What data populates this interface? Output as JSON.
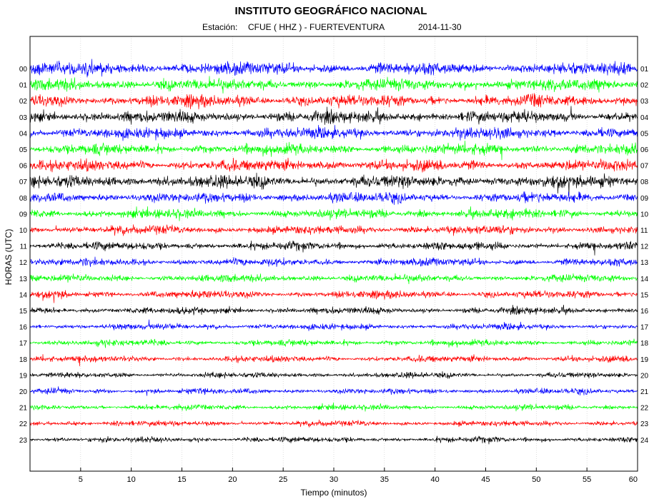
{
  "chart_data": {
    "type": "line",
    "title": "INSTITUTO GEOGRÁFICO NACIONAL",
    "station_label": "Estación:",
    "station": "CFUE ( HHZ ) - FUERTEVENTURA",
    "date": "2014-11-30",
    "xlabel": "Tiempo (minutos)",
    "ylabel": "HORAS (UTC)",
    "xlim": [
      0,
      60
    ],
    "xticks": [
      "5",
      "10",
      "15",
      "20",
      "25",
      "30",
      "35",
      "40",
      "45",
      "50",
      "55",
      "60"
    ],
    "grid": true,
    "left_hour_labels": [
      "00",
      "01",
      "02",
      "03",
      "04",
      "05",
      "06",
      "07",
      "08",
      "09",
      "10",
      "11",
      "12",
      "13",
      "14",
      "15",
      "16",
      "17",
      "18",
      "19",
      "20",
      "21",
      "22",
      "23"
    ],
    "right_hour_labels": [
      "01",
      "02",
      "03",
      "04",
      "05",
      "06",
      "07",
      "08",
      "09",
      "10",
      "11",
      "12",
      "13",
      "14",
      "15",
      "16",
      "17",
      "18",
      "19",
      "20",
      "21",
      "22",
      "23",
      "24"
    ],
    "trace_colors": [
      "#0000ff",
      "#00ff00",
      "#ff0000",
      "#000000"
    ],
    "trace_amplitude_relative": [
      1.0,
      0.95,
      0.95,
      0.95,
      0.9,
      0.85,
      0.9,
      1.0,
      0.8,
      0.75,
      0.7,
      0.65,
      0.6,
      0.6,
      0.6,
      0.55,
      0.5,
      0.5,
      0.5,
      0.45,
      0.45,
      0.45,
      0.45,
      0.45
    ]
  }
}
